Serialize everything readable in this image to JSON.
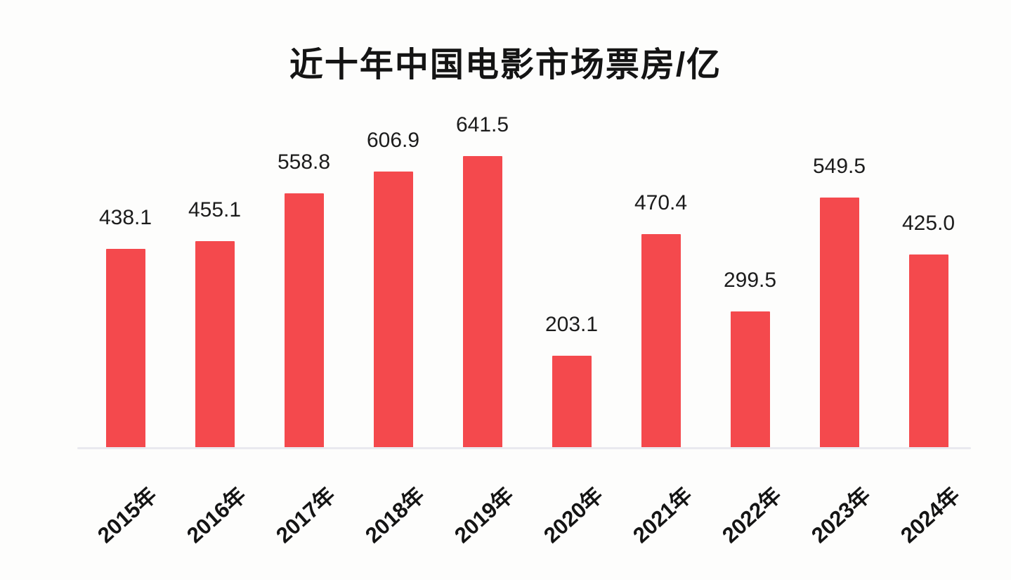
{
  "page": {
    "background_color": "#fdfdfc"
  },
  "chart_data": {
    "type": "bar",
    "title": "近十年中国电影市场票房/亿",
    "categories": [
      "2015年",
      "2016年",
      "2017年",
      "2018年",
      "2019年",
      "2020年",
      "2021年",
      "2022年",
      "2023年",
      "2024年"
    ],
    "values": [
      438.1,
      455.1,
      558.8,
      606.9,
      641.5,
      203.1,
      470.4,
      299.5,
      549.5,
      425.0
    ],
    "value_labels": [
      "438.1",
      "455.1",
      "558.8",
      "606.9",
      "641.5",
      "203.1",
      "470.4",
      "299.5",
      "549.5",
      "425.0"
    ],
    "xlabel": "",
    "ylabel": "",
    "ylim": [
      0,
      700
    ],
    "grid": false,
    "legend": false,
    "value_labels_position": "above-bars",
    "x_tick_rotation_deg": -42,
    "bar_color": "#f4494d",
    "title_color": "#141414",
    "value_label_color": "#1c1c1c",
    "tick_label_color": "#141414",
    "axis_line_color": "#e9e9ef"
  }
}
